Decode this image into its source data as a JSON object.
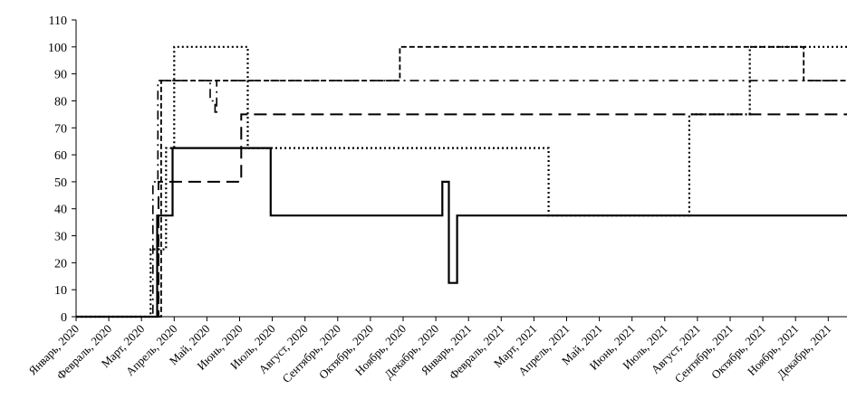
{
  "chart_data": {
    "type": "line",
    "step": true,
    "title": "",
    "xlabel": "",
    "ylabel": "",
    "ylim": [
      0,
      110
    ],
    "yticks": [
      0,
      10,
      20,
      30,
      40,
      50,
      60,
      70,
      80,
      90,
      100,
      110
    ],
    "xlim": [
      0,
      23.85
    ],
    "xticks": [
      "Январь, 2020",
      "Февраль, 2020",
      "Март, 2020",
      "Апрель, 2020",
      "Май, 2020",
      "Июнь, 2020",
      "Июль, 2020",
      "Август, 2020",
      "Сентябрь, 2020",
      "Октябрь, 2020",
      "Ноябрь, 2020",
      "Декабрь, 2020",
      "Январь, 2021",
      "Февраль, 2021",
      "Март, 2021",
      "Апрель, 2021",
      "Май, 2021",
      "Июнь, 2021",
      "Июль, 2021",
      "Август, 2021",
      "Сентябрь, 2021",
      "Октябрь, 2021",
      "Ноябрь, 2021",
      "Декабрь, 2021"
    ],
    "grid": false,
    "legend": "none",
    "series": [
      {
        "style": "solid",
        "points": [
          [
            0,
            0
          ],
          [
            2.48,
            0
          ],
          [
            2.48,
            37.5
          ],
          [
            2.95,
            37.5
          ],
          [
            2.95,
            62.5
          ],
          [
            5.95,
            62.5
          ],
          [
            5.95,
            37.5
          ],
          [
            11.2,
            37.5
          ],
          [
            11.2,
            50
          ],
          [
            11.4,
            50
          ],
          [
            11.4,
            12.5
          ],
          [
            11.65,
            12.5
          ],
          [
            11.65,
            37.5
          ],
          [
            23.85,
            37.5
          ]
        ]
      },
      {
        "style": "dotted",
        "points": [
          [
            0,
            0
          ],
          [
            2.28,
            0
          ],
          [
            2.28,
            25
          ],
          [
            2.75,
            25
          ],
          [
            2.75,
            62.5
          ],
          [
            3.0,
            62.5
          ],
          [
            3.0,
            100
          ],
          [
            5.25,
            100
          ],
          [
            5.25,
            62.5
          ],
          [
            14.45,
            62.5
          ],
          [
            14.45,
            37.5
          ],
          [
            18.75,
            37.5
          ],
          [
            18.75,
            75
          ],
          [
            20.6,
            75
          ],
          [
            20.6,
            100
          ],
          [
            23.85,
            100
          ]
        ]
      },
      {
        "style": "dash",
        "points": [
          [
            0,
            0
          ],
          [
            2.52,
            0
          ],
          [
            2.52,
            50
          ],
          [
            5.05,
            50
          ],
          [
            5.05,
            75
          ],
          [
            23.85,
            75
          ]
        ]
      },
      {
        "style": "dashdot",
        "points": [
          [
            0,
            0
          ],
          [
            2.35,
            0
          ],
          [
            2.35,
            50
          ],
          [
            2.5,
            50
          ],
          [
            2.5,
            87.5
          ],
          [
            4.1,
            87.5
          ],
          [
            4.1,
            80
          ],
          [
            4.25,
            80
          ],
          [
            4.25,
            75
          ],
          [
            4.3,
            75
          ],
          [
            4.3,
            87.5
          ],
          [
            23.85,
            87.5
          ]
        ]
      },
      {
        "style": "shortdash",
        "points": [
          [
            0,
            0
          ],
          [
            2.6,
            0
          ],
          [
            2.6,
            87.5
          ],
          [
            9.9,
            87.5
          ],
          [
            9.9,
            100
          ],
          [
            22.25,
            100
          ],
          [
            22.25,
            87.5
          ],
          [
            23.85,
            87.5
          ]
        ]
      }
    ]
  }
}
